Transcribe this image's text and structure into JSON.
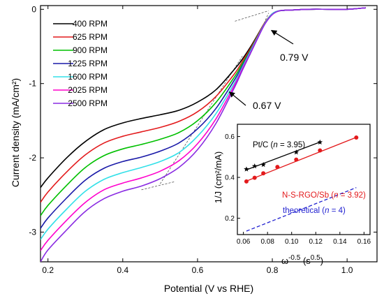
{
  "chart_data": [
    {
      "type": "line",
      "xlabel": "Potential (V vs RHE)",
      "ylabel": "Current density (mA/cm²)",
      "xlim": [
        0.18,
        1.08
      ],
      "ylim": [
        -3.4,
        0.05
      ],
      "x_ticks": [
        "0.2",
        "0.4",
        "0.6",
        "0.8",
        "1.0"
      ],
      "y_ticks": [
        "0",
        "-1",
        "-2",
        "-3"
      ],
      "legend_position": "top-left",
      "x": [
        0.18,
        0.2,
        0.25,
        0.3,
        0.35,
        0.4,
        0.45,
        0.5,
        0.55,
        0.6,
        0.65,
        0.7,
        0.72,
        0.74,
        0.76,
        0.78,
        0.8,
        0.82,
        0.85,
        0.9,
        0.95,
        1.0,
        1.05
      ],
      "series": [
        {
          "name": "400 RPM",
          "color": "#000000",
          "values": [
            -2.4,
            -2.27,
            -2.0,
            -1.78,
            -1.62,
            -1.53,
            -1.47,
            -1.42,
            -1.36,
            -1.25,
            -1.08,
            -0.8,
            -0.67,
            -0.52,
            -0.35,
            -0.18,
            -0.06,
            -0.02,
            -0.01,
            0.0,
            0.0,
            0.0,
            0.02
          ]
        },
        {
          "name": "625 RPM",
          "color": "#e31a1c",
          "values": [
            -2.6,
            -2.46,
            -2.19,
            -1.96,
            -1.8,
            -1.71,
            -1.65,
            -1.59,
            -1.51,
            -1.38,
            -1.17,
            -0.86,
            -0.7,
            -0.54,
            -0.36,
            -0.18,
            -0.06,
            -0.02,
            -0.01,
            0.0,
            0.0,
            0.0,
            0.02
          ]
        },
        {
          "name": "900 RPM",
          "color": "#00c000",
          "values": [
            -2.78,
            -2.64,
            -2.37,
            -2.13,
            -1.97,
            -1.88,
            -1.82,
            -1.75,
            -1.66,
            -1.5,
            -1.25,
            -0.9,
            -0.73,
            -0.56,
            -0.37,
            -0.19,
            -0.06,
            -0.02,
            -0.01,
            0.0,
            0.0,
            0.0,
            0.02
          ]
        },
        {
          "name": "1225 RPM",
          "color": "#1a1aa8",
          "values": [
            -2.95,
            -2.81,
            -2.54,
            -2.3,
            -2.14,
            -2.05,
            -1.99,
            -1.91,
            -1.8,
            -1.61,
            -1.33,
            -0.94,
            -0.76,
            -0.57,
            -0.38,
            -0.19,
            -0.06,
            -0.02,
            -0.01,
            0.0,
            0.0,
            0.0,
            0.02
          ]
        },
        {
          "name": "1600 RPM",
          "color": "#33e0e8",
          "values": [
            -3.1,
            -2.96,
            -2.69,
            -2.45,
            -2.29,
            -2.2,
            -2.13,
            -2.05,
            -1.93,
            -1.71,
            -1.4,
            -0.98,
            -0.78,
            -0.58,
            -0.38,
            -0.19,
            -0.06,
            -0.02,
            -0.01,
            0.0,
            0.0,
            0.0,
            0.02
          ]
        },
        {
          "name": "2025 RPM",
          "color": "#ff00cc",
          "values": [
            -3.25,
            -3.11,
            -2.84,
            -2.6,
            -2.43,
            -2.34,
            -2.27,
            -2.18,
            -2.04,
            -1.81,
            -1.47,
            -1.01,
            -0.8,
            -0.6,
            -0.39,
            -0.2,
            -0.07,
            -0.02,
            -0.01,
            0.0,
            0.0,
            0.0,
            0.02
          ]
        },
        {
          "name": "2500 RPM",
          "color": "#8a2be2",
          "values": [
            -3.4,
            -3.24,
            -2.97,
            -2.72,
            -2.55,
            -2.45,
            -2.38,
            -2.28,
            -2.13,
            -1.89,
            -1.53,
            -1.04,
            -0.82,
            -0.61,
            -0.4,
            -0.2,
            -0.07,
            -0.02,
            -0.01,
            0.0,
            0.0,
            0.0,
            0.02
          ]
        }
      ],
      "annotations": [
        {
          "text": "0.79 V",
          "points_to": [
            0.79,
            -0.02
          ]
        },
        {
          "text": "0.67 V",
          "points_to": [
            0.67,
            -1.15
          ]
        }
      ]
    },
    {
      "type": "scatter",
      "xlabel_base": "ω",
      "xlabel_exp": "-0.5",
      "xlabel_unit_base": "(s",
      "xlabel_unit_exp": "0.5",
      "xlabel_close": ")",
      "ylabel": "1/J (cm²/mA)",
      "xlim": [
        0.055,
        0.165
      ],
      "ylim": [
        0.12,
        0.66
      ],
      "x_ticks": [
        "0.06",
        "0.08",
        "0.10",
        "0.12",
        "0.14",
        "0.16"
      ],
      "y_ticks": [
        "0.2",
        "0.4",
        "0.6"
      ],
      "series": [
        {
          "label_prefix": "Pt/C (",
          "label_n": "n",
          "label_suffix": " = 3.95)",
          "color": "#000000",
          "marker": "star",
          "x": [
            0.0625,
            0.0693,
            0.0765,
            0.1038,
            0.1235
          ],
          "values": [
            0.44,
            0.455,
            0.462,
            0.523,
            0.572
          ],
          "fit": [
            [
              0.0625,
              0.437
            ],
            [
              0.1235,
              0.573
            ]
          ]
        },
        {
          "label_prefix": "N-S-RGO/Sb (",
          "label_n": "n",
          "label_suffix": " = 3.92)",
          "color": "#e31a1c",
          "marker": "circle",
          "x": [
            0.0625,
            0.0693,
            0.0765,
            0.0882,
            0.1038,
            0.1235,
            0.1536
          ],
          "values": [
            0.38,
            0.398,
            0.42,
            0.451,
            0.487,
            0.532,
            0.595
          ],
          "fit": [
            [
              0.0625,
              0.382
            ],
            [
              0.1536,
              0.596
            ]
          ]
        },
        {
          "label_prefix": "theoretical (",
          "label_n": "n",
          "label_suffix": " = 4)",
          "color": "#1f1fd0",
          "marker": "none",
          "dashed": true,
          "fit": [
            [
              0.0625,
              0.137
            ],
            [
              0.1536,
              0.35
            ]
          ]
        }
      ]
    }
  ]
}
